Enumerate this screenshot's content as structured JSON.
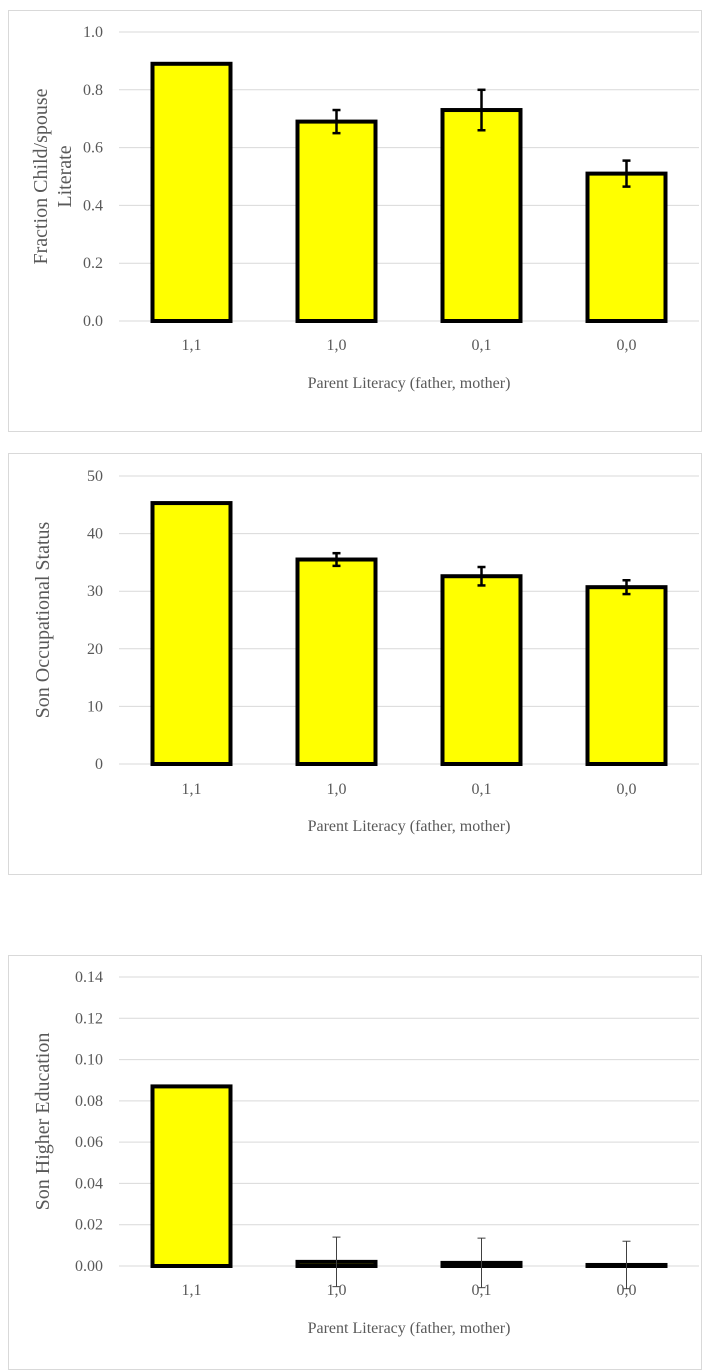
{
  "chart_data": [
    {
      "type": "bar",
      "categories": [
        "1,1",
        "1,0",
        "0,1",
        "0,0"
      ],
      "values": [
        0.89,
        0.69,
        0.73,
        0.51
      ],
      "errors": [
        0,
        0.04,
        0.07,
        0.045
      ],
      "xlabel": "Parent Literacy (father, mother)",
      "ylabel": "Fraction Child/spouse Literate",
      "ylim": [
        0,
        1.0
      ],
      "yticks": [
        "0.0",
        "0.2",
        "0.4",
        "0.6",
        "0.8",
        "1.0"
      ],
      "grid": true,
      "bar_fill": "#ffff00",
      "bar_stroke": "#000000"
    },
    {
      "type": "bar",
      "categories": [
        "1,1",
        "1,0",
        "0,1",
        "0,0"
      ],
      "values": [
        45.3,
        35.5,
        32.6,
        30.7
      ],
      "errors": [
        0,
        1.1,
        1.6,
        1.2
      ],
      "xlabel": "Parent Literacy (father, mother)",
      "ylabel": "Son Occupational Status",
      "ylim": [
        0,
        50
      ],
      "yticks": [
        "0",
        "10",
        "20",
        "30",
        "40",
        "50"
      ],
      "grid": true,
      "bar_fill": "#ffff00",
      "bar_stroke": "#000000"
    },
    {
      "type": "bar",
      "categories": [
        "1,1",
        "1,0",
        "0,1",
        "0,0"
      ],
      "values": [
        0.087,
        0.002,
        0.0015,
        0.0005
      ],
      "errors": [
        0,
        0.012,
        0.012,
        0.0115
      ],
      "xlabel": "Parent Literacy (father, mother)",
      "ylabel": "Son Higher Education",
      "ylim": [
        0,
        0.14
      ],
      "yticks": [
        "0.00",
        "0.02",
        "0.04",
        "0.06",
        "0.08",
        "0.10",
        "0.12",
        "0.14"
      ],
      "grid": true,
      "bar_fill": "#ffff00",
      "bar_stroke": "#000000"
    }
  ]
}
